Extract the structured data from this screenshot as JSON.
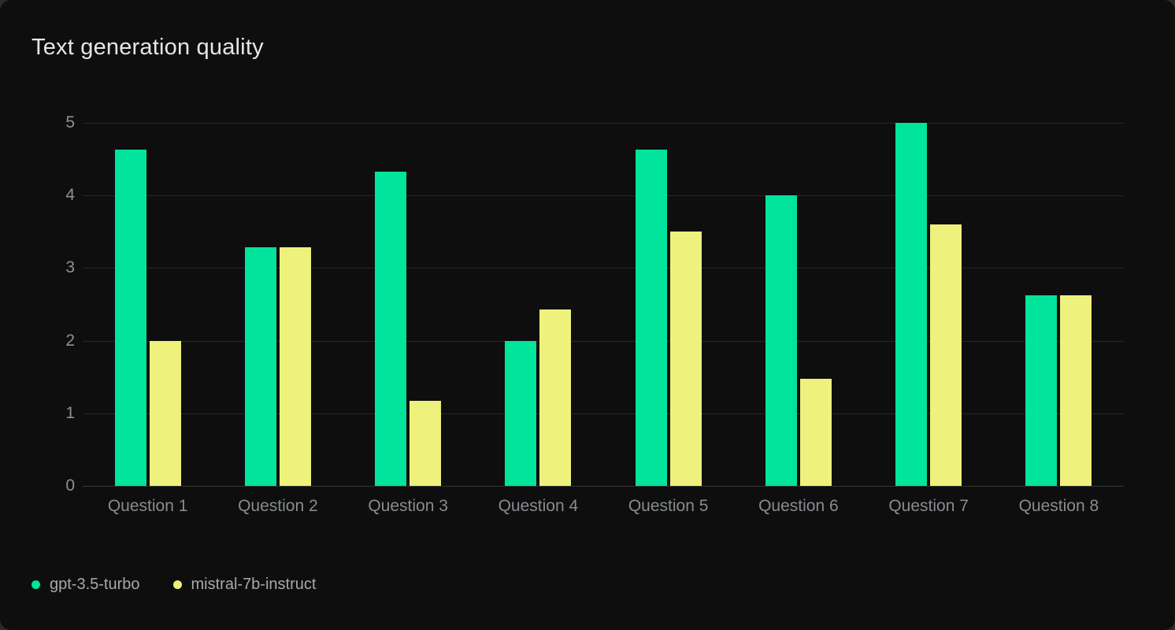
{
  "card": {
    "background": "#0D0E0D",
    "outer_background": "#2B2B2B"
  },
  "chart_data": {
    "type": "bar",
    "title": "Text generation quality",
    "categories": [
      "Question 1",
      "Question 2",
      "Question 3",
      "Question 4",
      "Question 5",
      "Question 6",
      "Question 7",
      "Question 8"
    ],
    "series": [
      {
        "name": "gpt-3.5-turbo",
        "color": "#00E49B",
        "values": [
          4.63,
          3.29,
          4.33,
          2.0,
          4.63,
          4.0,
          5.0,
          2.63
        ]
      },
      {
        "name": "mistral-7b-instruct",
        "color": "#EEF17B",
        "values": [
          2.0,
          3.29,
          1.17,
          2.43,
          3.5,
          1.47,
          3.6,
          2.63
        ]
      }
    ],
    "xlabel": "",
    "ylabel": "",
    "ylim": [
      0,
      5
    ],
    "yticks": [
      0,
      1,
      2,
      3,
      4,
      5
    ],
    "grid": true,
    "legend_position": "bottom-left",
    "colors": {
      "gridline": "#262826",
      "axis_line": "#343634",
      "y_tick_label": "#8D9196",
      "x_tick_label": "#888C91",
      "legend_text": "#A5A9AE",
      "title_text": "#E5E6E5"
    }
  }
}
